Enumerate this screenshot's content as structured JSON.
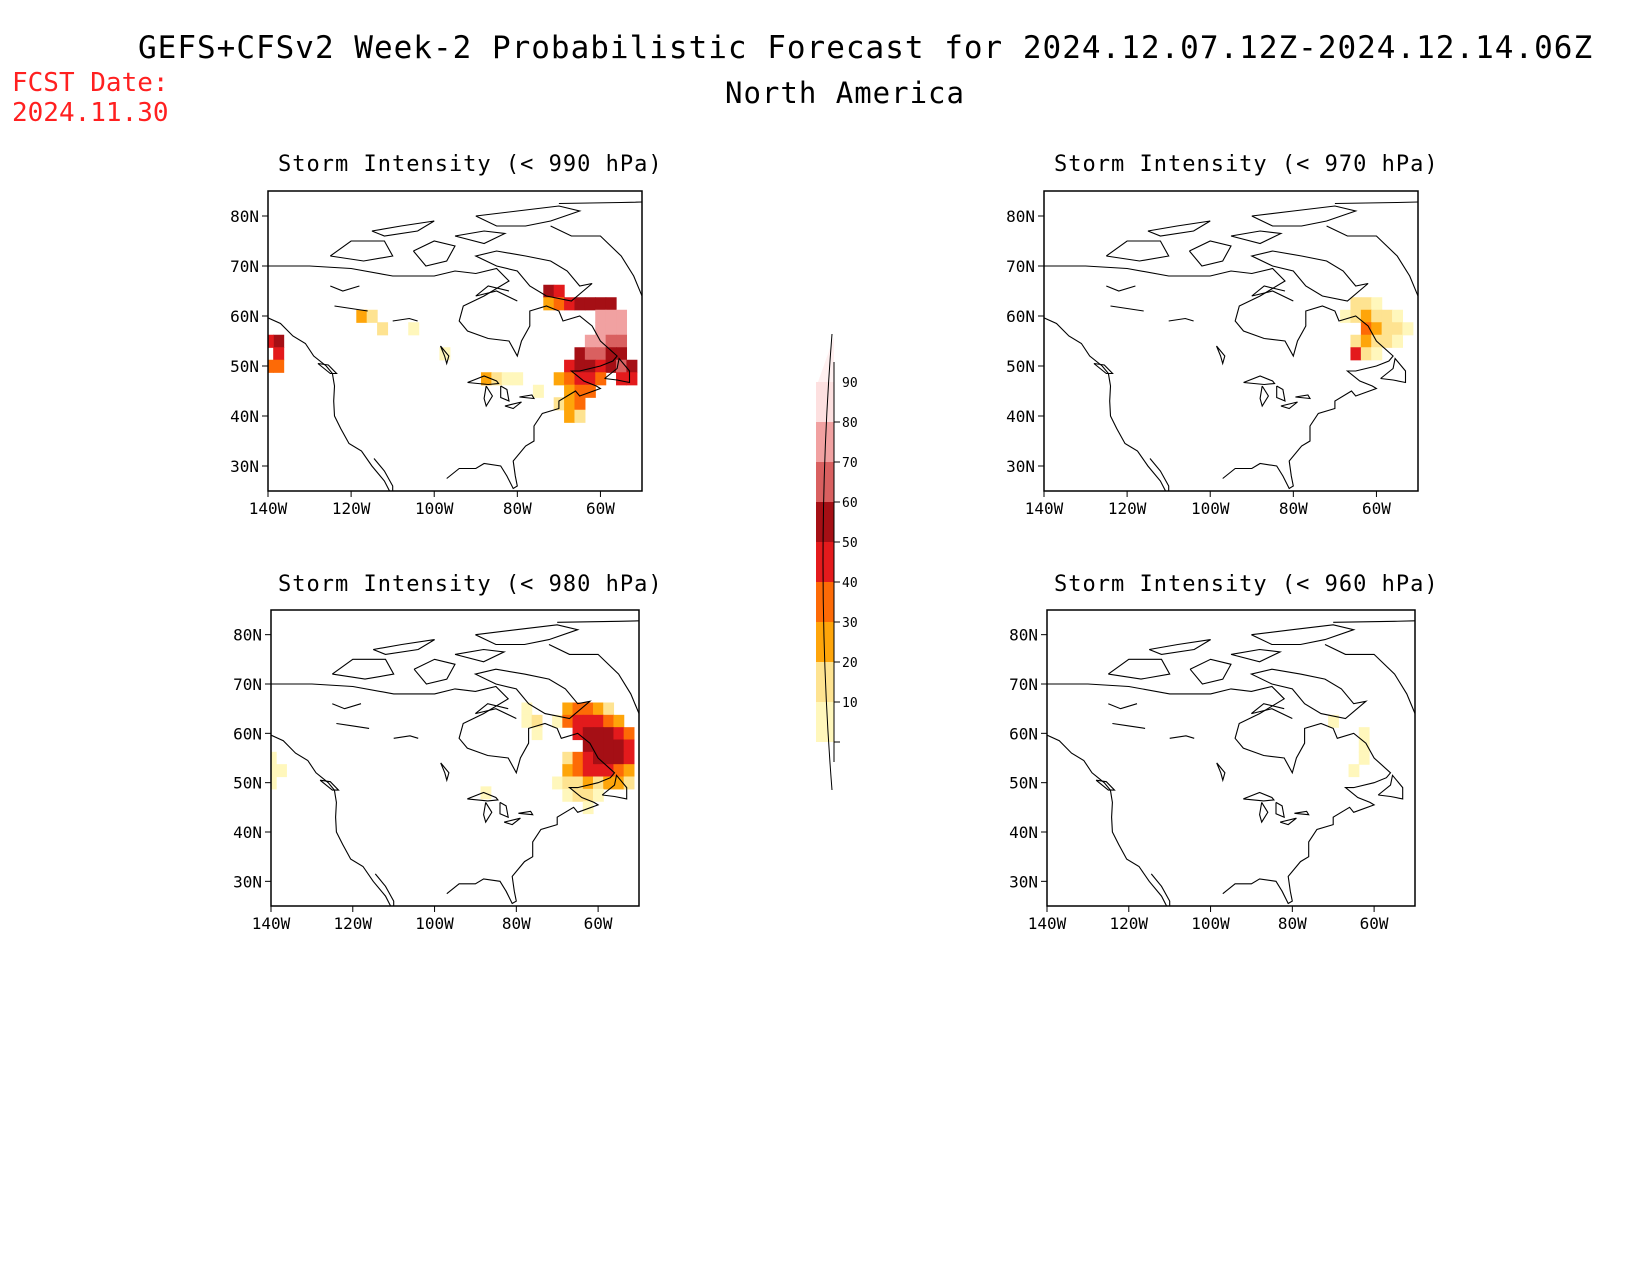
{
  "header": {
    "title_line1": "GEFS+CFSv2 Week-2 Probabilistic Forecast for 2024.12.07.12Z-2024.12.14.06Z",
    "title_line2": "North America",
    "fcst_label": "FCST Date:",
    "fcst_date": "2024.11.30"
  },
  "map": {
    "lat_labels": [
      "80N",
      "70N",
      "60N",
      "50N",
      "40N",
      "30N"
    ],
    "lon_labels": [
      "140W",
      "120W",
      "100W",
      "80W",
      "60W"
    ],
    "lat_values": [
      80,
      70,
      60,
      50,
      40,
      30
    ],
    "lon_values": [
      -140,
      -120,
      -100,
      -80,
      -60
    ],
    "extent": {
      "lon": [
        -140,
        -50
      ],
      "lat": [
        25,
        85
      ]
    }
  },
  "panels": [
    {
      "id": "p990",
      "title": "Storm Intensity (< 990 hPa)",
      "cells": [
        {
          "lat": 55,
          "lon": -137.5,
          "p": 65
        },
        {
          "lat": 52.5,
          "lon": -137.5,
          "p": 55
        },
        {
          "lat": 50,
          "lon": -137.5,
          "p": 45
        },
        {
          "lat": 55,
          "lon": -140,
          "p": 55
        },
        {
          "lat": 50,
          "lon": -140,
          "p": 40
        },
        {
          "lat": 60,
          "lon": -117.5,
          "p": 30
        },
        {
          "lat": 60,
          "lon": -115,
          "p": 20
        },
        {
          "lat": 57.5,
          "lon": -112.5,
          "p": 25
        },
        {
          "lat": 57.5,
          "lon": -105,
          "p": 15
        },
        {
          "lat": 52.5,
          "lon": -97.5,
          "p": 15
        },
        {
          "lat": 65,
          "lon": -72.5,
          "p": 60
        },
        {
          "lat": 65,
          "lon": -70,
          "p": 55
        },
        {
          "lat": 62.5,
          "lon": -72.5,
          "p": 35
        },
        {
          "lat": 62.5,
          "lon": -70,
          "p": 45
        },
        {
          "lat": 62.5,
          "lon": -67.5,
          "p": 55
        },
        {
          "lat": 62.5,
          "lon": -65,
          "p": 60
        },
        {
          "lat": 62.5,
          "lon": -62.5,
          "p": 60
        },
        {
          "lat": 62.5,
          "lon": -60,
          "p": 65
        },
        {
          "lat": 62.5,
          "lon": -57.5,
          "p": 65
        },
        {
          "lat": 60,
          "lon": -60,
          "p": 85
        },
        {
          "lat": 60,
          "lon": -57.5,
          "p": 85
        },
        {
          "lat": 60,
          "lon": -55,
          "p": 85
        },
        {
          "lat": 57.5,
          "lon": -60,
          "p": 85
        },
        {
          "lat": 57.5,
          "lon": -57.5,
          "p": 85
        },
        {
          "lat": 57.5,
          "lon": -55,
          "p": 85
        },
        {
          "lat": 55,
          "lon": -62.5,
          "p": 85
        },
        {
          "lat": 55,
          "lon": -60,
          "p": 85
        },
        {
          "lat": 55,
          "lon": -57.5,
          "p": 75
        },
        {
          "lat": 55,
          "lon": -55,
          "p": 75
        },
        {
          "lat": 52.5,
          "lon": -65,
          "p": 65
        },
        {
          "lat": 52.5,
          "lon": -62.5,
          "p": 75
        },
        {
          "lat": 52.5,
          "lon": -60,
          "p": 75
        },
        {
          "lat": 52.5,
          "lon": -57.5,
          "p": 65
        },
        {
          "lat": 52.5,
          "lon": -55,
          "p": 65
        },
        {
          "lat": 50,
          "lon": -67.5,
          "p": 55
        },
        {
          "lat": 50,
          "lon": -65,
          "p": 65
        },
        {
          "lat": 50,
          "lon": -62.5,
          "p": 65
        },
        {
          "lat": 50,
          "lon": -60,
          "p": 55
        },
        {
          "lat": 50,
          "lon": -57.5,
          "p": 65
        },
        {
          "lat": 50,
          "lon": -55,
          "p": 75
        },
        {
          "lat": 50,
          "lon": -52.5,
          "p": 65
        },
        {
          "lat": 47.5,
          "lon": -70,
          "p": 35
        },
        {
          "lat": 47.5,
          "lon": -67.5,
          "p": 45
        },
        {
          "lat": 47.5,
          "lon": -65,
          "p": 55
        },
        {
          "lat": 47.5,
          "lon": -62.5,
          "p": 55
        },
        {
          "lat": 47.5,
          "lon": -60,
          "p": 45
        },
        {
          "lat": 47.5,
          "lon": -55,
          "p": 55
        },
        {
          "lat": 47.5,
          "lon": -52.5,
          "p": 55
        },
        {
          "lat": 45,
          "lon": -67.5,
          "p": 35
        },
        {
          "lat": 45,
          "lon": -65,
          "p": 45
        },
        {
          "lat": 45,
          "lon": -62.5,
          "p": 45
        },
        {
          "lat": 42.5,
          "lon": -70,
          "p": 20
        },
        {
          "lat": 42.5,
          "lon": -67.5,
          "p": 35
        },
        {
          "lat": 42.5,
          "lon": -65,
          "p": 45
        },
        {
          "lat": 40,
          "lon": -67.5,
          "p": 35
        },
        {
          "lat": 40,
          "lon": -65,
          "p": 25
        },
        {
          "lat": 47.5,
          "lon": -87.5,
          "p": 35
        },
        {
          "lat": 47.5,
          "lon": -85,
          "p": 25
        },
        {
          "lat": 47.5,
          "lon": -82.5,
          "p": 15
        },
        {
          "lat": 47.5,
          "lon": -80,
          "p": 15
        },
        {
          "lat": 45,
          "lon": -75,
          "p": 15
        }
      ]
    },
    {
      "id": "p970",
      "title": "Storm Intensity (< 970 hPa)",
      "cells": [
        {
          "lat": 62.5,
          "lon": -65,
          "p": 20
        },
        {
          "lat": 62.5,
          "lon": -62.5,
          "p": 20
        },
        {
          "lat": 62.5,
          "lon": -60,
          "p": 15
        },
        {
          "lat": 60,
          "lon": -67.5,
          "p": 15
        },
        {
          "lat": 60,
          "lon": -65,
          "p": 25
        },
        {
          "lat": 60,
          "lon": -62.5,
          "p": 35
        },
        {
          "lat": 60,
          "lon": -60,
          "p": 25
        },
        {
          "lat": 60,
          "lon": -57.5,
          "p": 20
        },
        {
          "lat": 60,
          "lon": -55,
          "p": 15
        },
        {
          "lat": 57.5,
          "lon": -62.5,
          "p": 45
        },
        {
          "lat": 57.5,
          "lon": -60,
          "p": 35
        },
        {
          "lat": 57.5,
          "lon": -57.5,
          "p": 25
        },
        {
          "lat": 57.5,
          "lon": -55,
          "p": 20
        },
        {
          "lat": 57.5,
          "lon": -52.5,
          "p": 15
        },
        {
          "lat": 55,
          "lon": -65,
          "p": 25
        },
        {
          "lat": 55,
          "lon": -62.5,
          "p": 35
        },
        {
          "lat": 55,
          "lon": -60,
          "p": 25
        },
        {
          "lat": 55,
          "lon": -57.5,
          "p": 20
        },
        {
          "lat": 55,
          "lon": -55,
          "p": 15
        },
        {
          "lat": 52.5,
          "lon": -65,
          "p": 55
        },
        {
          "lat": 52.5,
          "lon": -62.5,
          "p": 20
        },
        {
          "lat": 52.5,
          "lon": -60,
          "p": 15
        }
      ]
    },
    {
      "id": "p980",
      "title": "Storm Intensity (< 980 hPa)",
      "cells": [
        {
          "lat": 55,
          "lon": -140,
          "p": 15
        },
        {
          "lat": 52.5,
          "lon": -140,
          "p": 15
        },
        {
          "lat": 50,
          "lon": -140,
          "p": 15
        },
        {
          "lat": 52.5,
          "lon": -137.5,
          "p": 15
        },
        {
          "lat": 65,
          "lon": -77.5,
          "p": 15
        },
        {
          "lat": 62.5,
          "lon": -77.5,
          "p": 15
        },
        {
          "lat": 62.5,
          "lon": -75,
          "p": 25
        },
        {
          "lat": 60,
          "lon": -75,
          "p": 15
        },
        {
          "lat": 62.5,
          "lon": -70,
          "p": 15
        },
        {
          "lat": 65,
          "lon": -67.5,
          "p": 35
        },
        {
          "lat": 65,
          "lon": -65,
          "p": 45
        },
        {
          "lat": 65,
          "lon": -62.5,
          "p": 45
        },
        {
          "lat": 65,
          "lon": -60,
          "p": 35
        },
        {
          "lat": 65,
          "lon": -57.5,
          "p": 25
        },
        {
          "lat": 62.5,
          "lon": -67.5,
          "p": 45
        },
        {
          "lat": 62.5,
          "lon": -65,
          "p": 55
        },
        {
          "lat": 62.5,
          "lon": -62.5,
          "p": 55
        },
        {
          "lat": 62.5,
          "lon": -60,
          "p": 55
        },
        {
          "lat": 62.5,
          "lon": -57.5,
          "p": 45
        },
        {
          "lat": 62.5,
          "lon": -55,
          "p": 35
        },
        {
          "lat": 60,
          "lon": -65,
          "p": 55
        },
        {
          "lat": 60,
          "lon": -62.5,
          "p": 65
        },
        {
          "lat": 60,
          "lon": -60,
          "p": 65
        },
        {
          "lat": 60,
          "lon": -57.5,
          "p": 65
        },
        {
          "lat": 60,
          "lon": -55,
          "p": 55
        },
        {
          "lat": 60,
          "lon": -52.5,
          "p": 45
        },
        {
          "lat": 57.5,
          "lon": -62.5,
          "p": 65
        },
        {
          "lat": 57.5,
          "lon": -60,
          "p": 65
        },
        {
          "lat": 57.5,
          "lon": -57.5,
          "p": 65
        },
        {
          "lat": 57.5,
          "lon": -55,
          "p": 65
        },
        {
          "lat": 57.5,
          "lon": -52.5,
          "p": 55
        },
        {
          "lat": 55,
          "lon": -67.5,
          "p": 25
        },
        {
          "lat": 55,
          "lon": -65,
          "p": 45
        },
        {
          "lat": 55,
          "lon": -62.5,
          "p": 55
        },
        {
          "lat": 55,
          "lon": -60,
          "p": 65
        },
        {
          "lat": 55,
          "lon": -57.5,
          "p": 65
        },
        {
          "lat": 55,
          "lon": -55,
          "p": 65
        },
        {
          "lat": 55,
          "lon": -52.5,
          "p": 55
        },
        {
          "lat": 52.5,
          "lon": -67.5,
          "p": 35
        },
        {
          "lat": 52.5,
          "lon": -65,
          "p": 45
        },
        {
          "lat": 52.5,
          "lon": -62.5,
          "p": 55
        },
        {
          "lat": 52.5,
          "lon": -60,
          "p": 55
        },
        {
          "lat": 52.5,
          "lon": -57.5,
          "p": 55
        },
        {
          "lat": 52.5,
          "lon": -55,
          "p": 45
        },
        {
          "lat": 52.5,
          "lon": -52.5,
          "p": 35
        },
        {
          "lat": 50,
          "lon": -70,
          "p": 15
        },
        {
          "lat": 50,
          "lon": -67.5,
          "p": 25
        },
        {
          "lat": 50,
          "lon": -65,
          "p": 25
        },
        {
          "lat": 50,
          "lon": -62.5,
          "p": 35
        },
        {
          "lat": 50,
          "lon": -60,
          "p": 25
        },
        {
          "lat": 50,
          "lon": -57.5,
          "p": 35
        },
        {
          "lat": 50,
          "lon": -55,
          "p": 35
        },
        {
          "lat": 50,
          "lon": -52.5,
          "p": 25
        },
        {
          "lat": 47.5,
          "lon": -67.5,
          "p": 15
        },
        {
          "lat": 47.5,
          "lon": -65,
          "p": 20
        },
        {
          "lat": 47.5,
          "lon": -62.5,
          "p": 25
        },
        {
          "lat": 47.5,
          "lon": -60,
          "p": 15
        },
        {
          "lat": 45,
          "lon": -62.5,
          "p": 15
        },
        {
          "lat": 48,
          "lon": -87.5,
          "p": 15
        }
      ]
    },
    {
      "id": "p960",
      "title": "Storm Intensity (< 960 hPa)",
      "cells": [
        {
          "lat": 60,
          "lon": -62.5,
          "p": 15
        },
        {
          "lat": 57.5,
          "lon": -62.5,
          "p": 15
        },
        {
          "lat": 55,
          "lon": -62.5,
          "p": 15
        },
        {
          "lat": 52.5,
          "lon": -65,
          "p": 15
        },
        {
          "lat": 62.5,
          "lon": -70,
          "p": 10
        }
      ]
    }
  ],
  "colorbar": {
    "levels": [
      "10",
      "20",
      "30",
      "40",
      "50",
      "60",
      "70",
      "80",
      "90"
    ],
    "colors": [
      "#fff7bc",
      "#fee391",
      "#fea50a",
      "#fd6a06",
      "#e31a1c",
      "#a50f15",
      "#d96060",
      "#f1a1a1",
      "#fde0e0"
    ]
  }
}
